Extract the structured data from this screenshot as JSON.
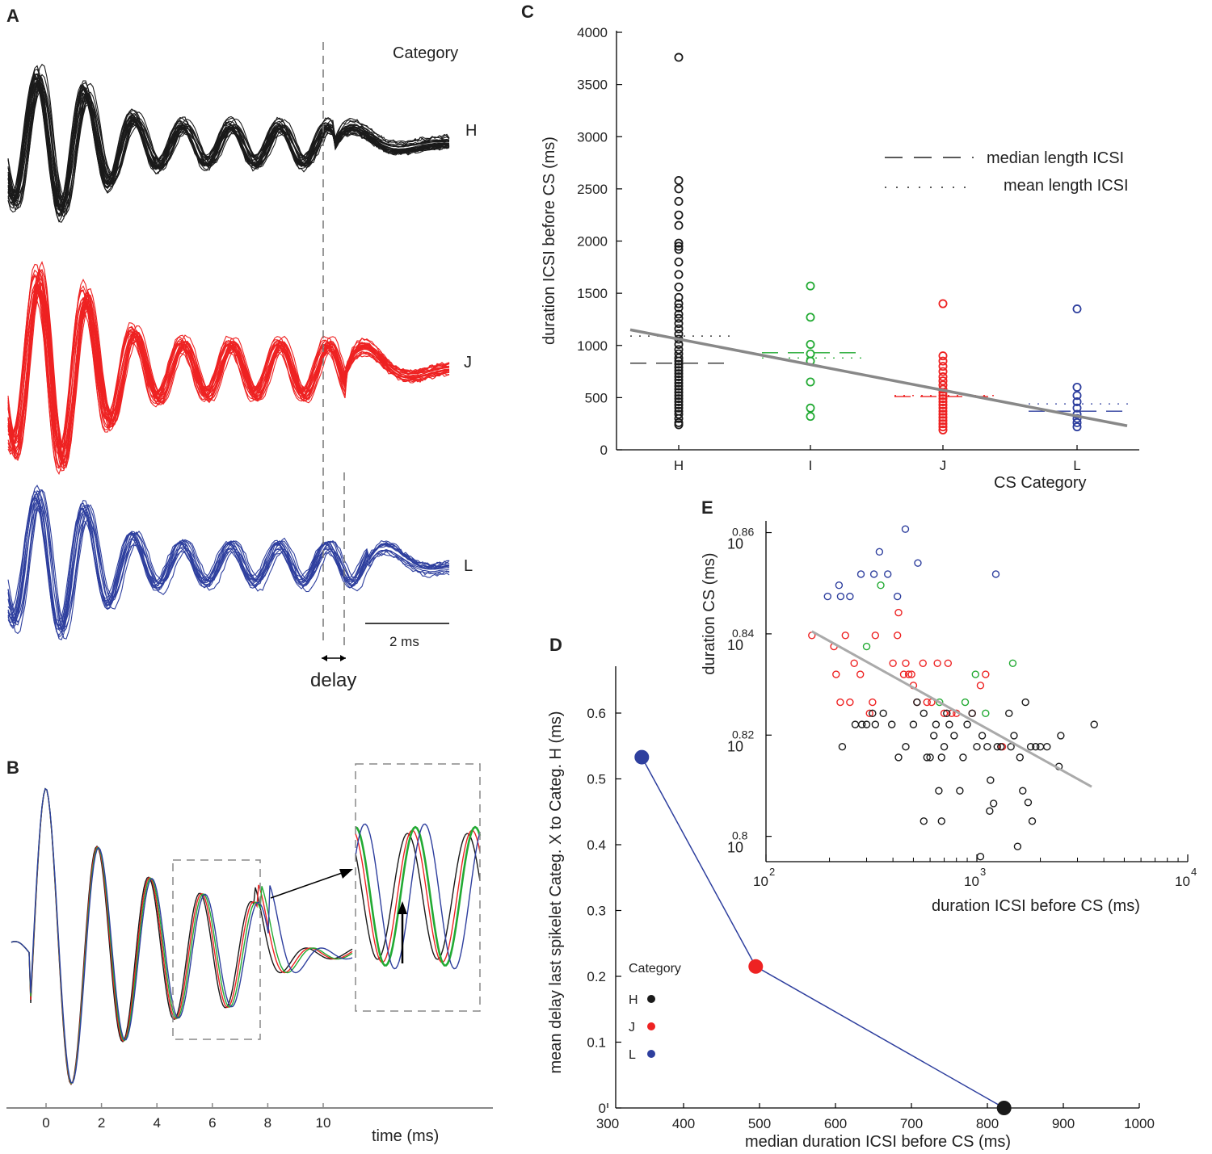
{
  "panel_labels": {
    "a": "A",
    "b": "B",
    "c": "C",
    "d": "D",
    "e": "E"
  },
  "panel_a": {
    "header": "Category",
    "row_labels": [
      "H",
      "J",
      "L"
    ],
    "scale_bar": "2 ms",
    "delay_label": "delay",
    "colors": {
      "H": "#1a1a1a",
      "J": "#ee2222",
      "L": "#2e3f9e"
    }
  },
  "panel_b": {
    "xlabel": "time (ms)",
    "xticks": [
      "0",
      "2",
      "4",
      "6",
      "8",
      "10"
    ],
    "colors": [
      "#1a1a1a",
      "#ee2222",
      "#22aa33",
      "#2e3f9e"
    ]
  },
  "chart_data": [
    {
      "type": "scatter",
      "id": "C",
      "title": "",
      "xlabel": "CS Category",
      "ylabel": "duration ICSI before CS (ms)",
      "categories": [
        "H",
        "I",
        "J",
        "L"
      ],
      "ylim": [
        0,
        4000
      ],
      "yticks": [
        "0",
        "500",
        "1000",
        "1500",
        "2000",
        "2500",
        "3000",
        "3500",
        "4000"
      ],
      "legend": {
        "median": "median length ICSI",
        "mean": "mean length ICSI",
        "position": "top-right"
      },
      "series": [
        {
          "name": "H",
          "color": "#1a1a1a",
          "median": 830,
          "mean": 1090,
          "values": [
            3760,
            2580,
            2500,
            2380,
            2250,
            2150,
            1980,
            1950,
            1920,
            1800,
            1680,
            1560,
            1460,
            1400,
            1360,
            1300,
            1260,
            1210,
            1160,
            1110,
            1060,
            1010,
            960,
            920,
            880,
            850,
            820,
            790,
            760,
            730,
            700,
            670,
            640,
            610,
            580,
            550,
            520,
            490,
            460,
            430,
            400,
            370,
            340,
            300,
            260,
            240
          ]
        },
        {
          "name": "I",
          "color": "#22aa33",
          "median": 930,
          "mean": 880,
          "values": [
            1570,
            1270,
            1010,
            920,
            850,
            650,
            400,
            320
          ]
        },
        {
          "name": "J",
          "color": "#ee2222",
          "median": 510,
          "mean": 520,
          "values": [
            1400,
            900,
            850,
            800,
            750,
            700,
            660,
            620,
            580,
            550,
            520,
            490,
            460,
            430,
            400,
            370,
            340,
            310,
            280,
            250,
            220,
            190
          ]
        },
        {
          "name": "L",
          "color": "#2e3f9e",
          "median": 370,
          "mean": 440,
          "values": [
            1350,
            600,
            520,
            460,
            400,
            340,
            300,
            260,
            220
          ]
        }
      ],
      "regression": {
        "x": [
          0,
          4
        ],
        "y": [
          1150,
          230
        ]
      }
    },
    {
      "type": "line",
      "id": "D",
      "xlabel": "median duration ICSI before CS (ms)",
      "ylabel": "mean delay last spikelet Categ. X to Categ. H (ms)",
      "xlim": [
        300,
        1000
      ],
      "ylim": [
        0,
        0.65
      ],
      "xticks": [
        "300",
        "400",
        "500",
        "600",
        "700",
        "800",
        "900",
        "1000"
      ],
      "yticks": [
        "0",
        "0.1",
        "0.2",
        "0.3",
        "0.4",
        "0.5",
        "0.6"
      ],
      "legend_title": "Category",
      "points": [
        {
          "name": "L",
          "x": 345,
          "y": 0.533,
          "color": "#2e3f9e"
        },
        {
          "name": "J",
          "x": 495,
          "y": 0.215,
          "color": "#ee2222"
        },
        {
          "name": "H",
          "x": 822,
          "y": 0.0,
          "color": "#1a1a1a"
        }
      ],
      "line_color": "#2e3f9e"
    },
    {
      "type": "scatter",
      "id": "E",
      "xlabel": "duration ICSI before CS (ms)",
      "ylabel": "duration CS (ms)",
      "xscale": "log",
      "yscale": "log",
      "xlim_log10": [
        2,
        4
      ],
      "ylim_log10": [
        0.795,
        0.862
      ],
      "xtick_base": "10",
      "xtick_exps": [
        "2",
        "3",
        "4"
      ],
      "ytick_base": "10",
      "ytick_exps": [
        "0.8",
        "0.82",
        "0.84",
        "0.86"
      ],
      "series": [
        {
          "name": "L",
          "color": "#2e3f9e",
          "points": [
            [
              196,
              0.8474
            ],
            [
              222,
              0.8496
            ],
            [
              226,
              0.8474
            ],
            [
              250,
              0.8474
            ],
            [
              282,
              0.8518
            ],
            [
              325,
              0.8518
            ],
            [
              345,
              0.8562
            ],
            [
              378,
              0.8518
            ],
            [
              420,
              0.8474
            ],
            [
              458,
              0.8607
            ],
            [
              525,
              0.854
            ],
            [
              1230,
              0.8518
            ]
          ]
        },
        {
          "name": "I",
          "color": "#22aa33",
          "points": [
            [
              350,
              0.8496
            ],
            [
              300,
              0.8375
            ],
            [
              665,
              0.8265
            ],
            [
              880,
              0.8265
            ],
            [
              985,
              0.832
            ],
            [
              1100,
              0.8243
            ],
            [
              1480,
              0.8342
            ]
          ]
        },
        {
          "name": "J",
          "color": "#ee2222",
          "points": [
            [
              165,
              0.8397
            ],
            [
              210,
              0.8375
            ],
            [
              215,
              0.832
            ],
            [
              225,
              0.8265
            ],
            [
              238,
              0.8397
            ],
            [
              250,
              0.8265
            ],
            [
              262,
              0.8342
            ],
            [
              280,
              0.832
            ],
            [
              310,
              0.8243
            ],
            [
              320,
              0.8265
            ],
            [
              330,
              0.8397
            ],
            [
              400,
              0.8342
            ],
            [
              420,
              0.8397
            ],
            [
              425,
              0.8442
            ],
            [
              450,
              0.832
            ],
            [
              460,
              0.8342
            ],
            [
              475,
              0.832
            ],
            [
              490,
              0.832
            ],
            [
              500,
              0.8298
            ],
            [
              520,
              0.8265
            ],
            [
              555,
              0.8342
            ],
            [
              580,
              0.8265
            ],
            [
              610,
              0.8265
            ],
            [
              650,
              0.8342
            ],
            [
              700,
              0.8243
            ],
            [
              730,
              0.8342
            ],
            [
              760,
              0.8243
            ],
            [
              800,
              0.8243
            ],
            [
              950,
              0.8243
            ],
            [
              1040,
              0.8298
            ],
            [
              1100,
              0.832
            ],
            [
              1320,
              0.8177
            ]
          ]
        },
        {
          "name": "H",
          "color": "#1a1a1a",
          "points": [
            [
              230,
              0.8177
            ],
            [
              265,
              0.8221
            ],
            [
              285,
              0.8221
            ],
            [
              300,
              0.8221
            ],
            [
              320,
              0.8243
            ],
            [
              330,
              0.8221
            ],
            [
              360,
              0.8243
            ],
            [
              395,
              0.8221
            ],
            [
              425,
              0.8156
            ],
            [
              460,
              0.8177
            ],
            [
              500,
              0.8221
            ],
            [
              520,
              0.8265
            ],
            [
              560,
              0.8243
            ],
            [
              580,
              0.8156
            ],
            [
              600,
              0.8156
            ],
            [
              625,
              0.8199
            ],
            [
              640,
              0.8221
            ],
            [
              660,
              0.809
            ],
            [
              680,
              0.8156
            ],
            [
              700,
              0.8177
            ],
            [
              720,
              0.8243
            ],
            [
              740,
              0.8221
            ],
            [
              780,
              0.8199
            ],
            [
              830,
              0.809
            ],
            [
              860,
              0.8156
            ],
            [
              900,
              0.8221
            ],
            [
              950,
              0.8243
            ],
            [
              1000,
              0.8177
            ],
            [
              1060,
              0.8199
            ],
            [
              1120,
              0.8177
            ],
            [
              1160,
              0.8111
            ],
            [
              1200,
              0.8065
            ],
            [
              1250,
              0.8177
            ],
            [
              1300,
              0.8177
            ],
            [
              1420,
              0.8243
            ],
            [
              1450,
              0.8177
            ],
            [
              1500,
              0.8199
            ],
            [
              1560,
              0.798
            ],
            [
              1600,
              0.8156
            ],
            [
              1650,
              0.809
            ],
            [
              1700,
              0.8265
            ],
            [
              1750,
              0.8067
            ],
            [
              1800,
              0.8177
            ],
            [
              1900,
              0.8177
            ],
            [
              2000,
              0.8177
            ],
            [
              2150,
              0.8177
            ],
            [
              2450,
              0.8138
            ],
            [
              2500,
              0.8199
            ],
            [
              3600,
              0.8221
            ],
            [
              560,
              0.803
            ],
            [
              680,
              0.803
            ],
            [
              1040,
              0.796
            ],
            [
              1150,
              0.805
            ],
            [
              1830,
              0.803
            ]
          ]
        }
      ],
      "regression": {
        "x": [
          165,
          3500
        ],
        "y": [
          0.8405,
          0.8098
        ]
      }
    }
  ]
}
